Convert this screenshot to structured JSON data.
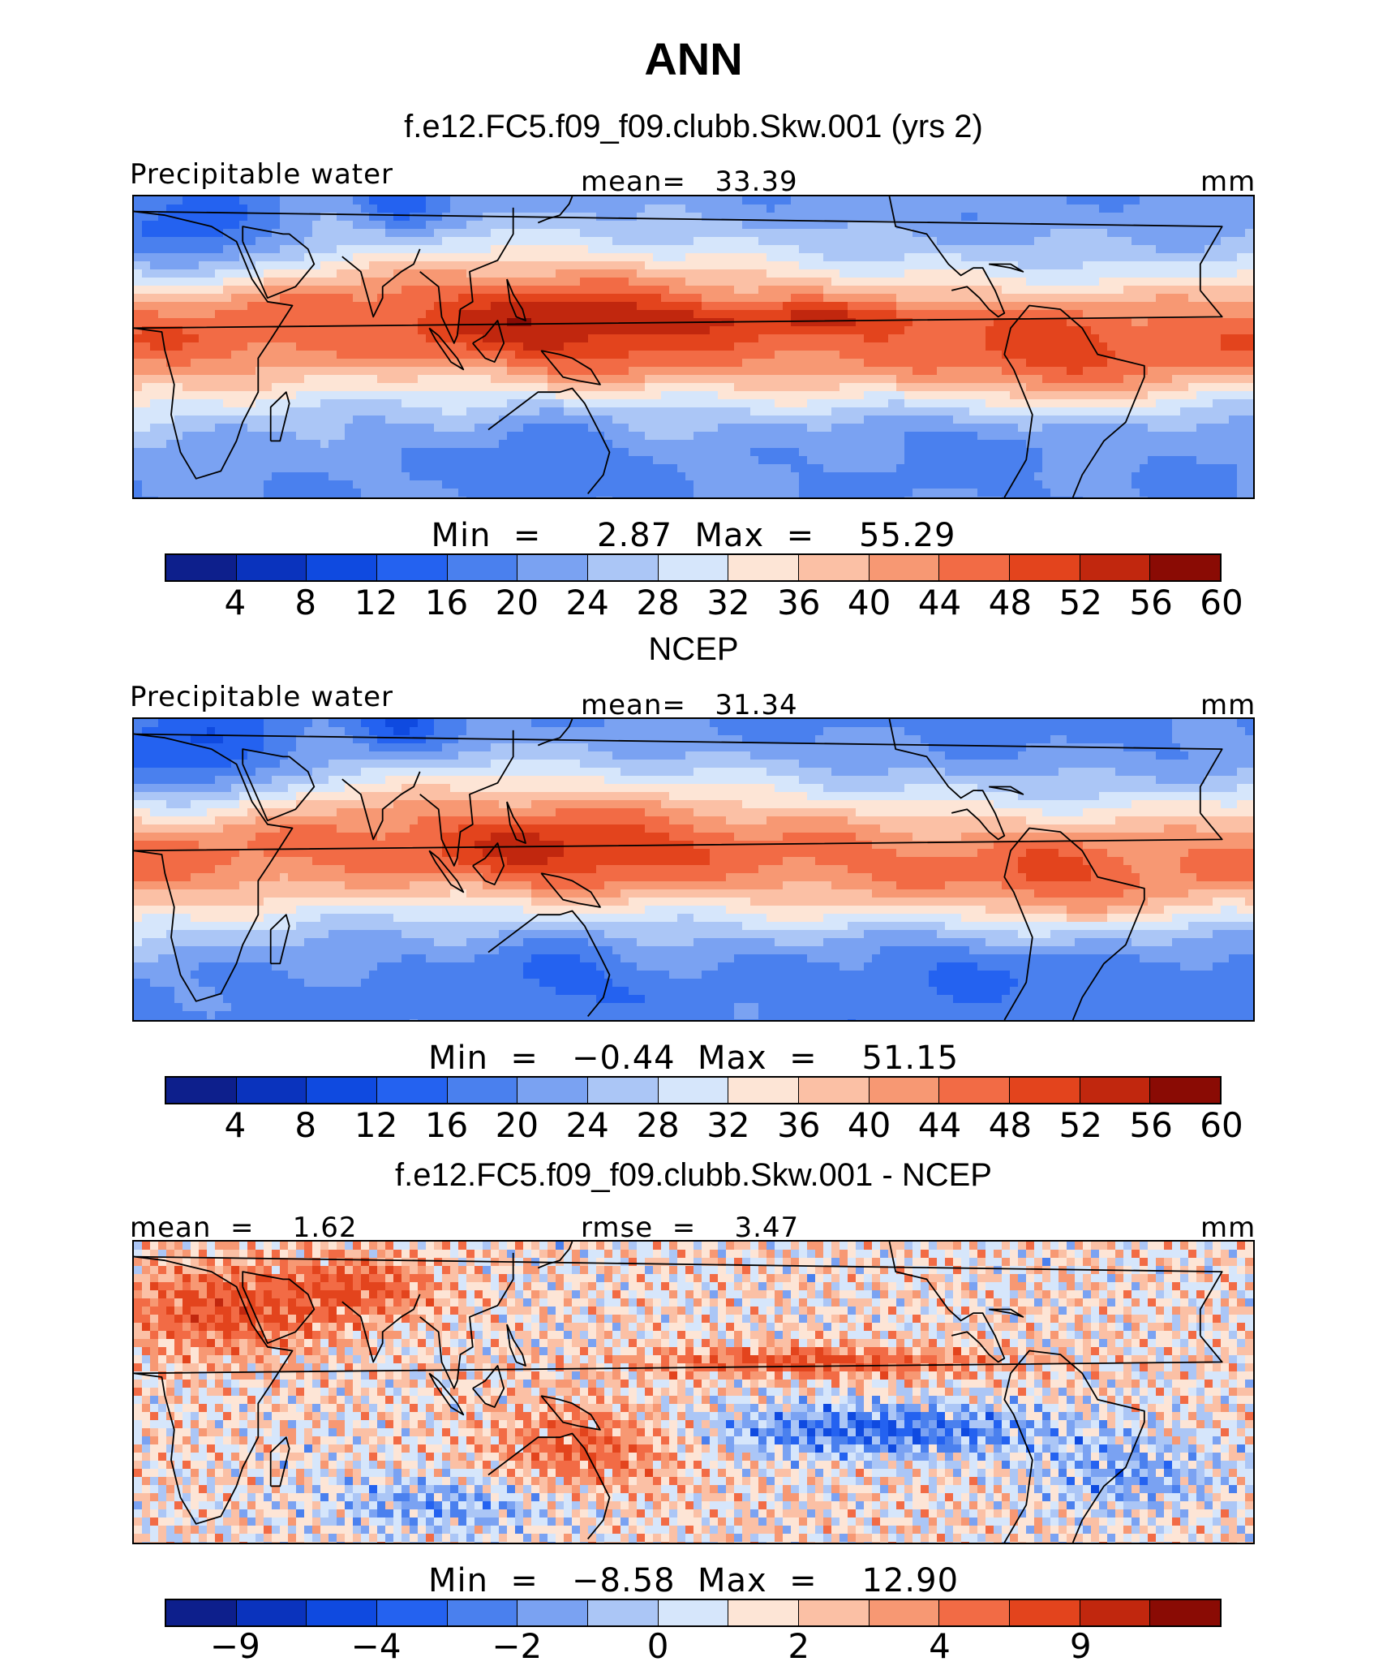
{
  "title": "ANN",
  "colors": [
    "#0d1f8c",
    "#0a33bd",
    "#0f4ae0",
    "#2462f0",
    "#4a80ee",
    "#7aa2f2",
    "#abc6f6",
    "#d6e6fb",
    "#fde5d6",
    "#fbc0a5",
    "#f79873",
    "#f26b45",
    "#e3441d",
    "#c1270e",
    "#8a0b04"
  ],
  "coast_color": "#000000",
  "chart_data": [
    {
      "type": "contour-map",
      "name": "model",
      "title": "f.e12.FC5.f09_f09.clubb.Skw.001 (yrs 2)",
      "variable": "Precipitable water",
      "stat_center": "mean=   33.39",
      "units": "mm",
      "mean": 33.39,
      "min": 2.87,
      "max": 55.29,
      "minmax_text": "Min  =     2.87  Max  =    55.29",
      "levels": [
        4,
        8,
        12,
        16,
        20,
        24,
        28,
        32,
        36,
        40,
        44,
        48,
        52,
        56,
        60
      ],
      "tick_labels": [
        "4",
        "8",
        "12",
        "16",
        "20",
        "24",
        "28",
        "32",
        "36",
        "40",
        "44",
        "48",
        "52",
        "56",
        "60"
      ],
      "lon_range": [
        0,
        360
      ],
      "lat_range": [
        -40,
        40
      ]
    },
    {
      "type": "contour-map",
      "name": "ncep",
      "title": "NCEP",
      "variable": "Precipitable water",
      "stat_center": "mean=   31.34",
      "units": "mm",
      "mean": 31.34,
      "min": -0.44,
      "max": 51.15,
      "minmax_text": "Min  =   −0.44  Max  =    51.15",
      "levels": [
        4,
        8,
        12,
        16,
        20,
        24,
        28,
        32,
        36,
        40,
        44,
        48,
        52,
        56,
        60
      ],
      "tick_labels": [
        "4",
        "8",
        "12",
        "16",
        "20",
        "24",
        "28",
        "32",
        "36",
        "40",
        "44",
        "48",
        "52",
        "56",
        "60"
      ],
      "lon_range": [
        0,
        360
      ],
      "lat_range": [
        -40,
        40
      ]
    },
    {
      "type": "contour-map",
      "name": "difference",
      "title": "f.e12.FC5.f09_f09.clubb.Skw.001 - NCEP",
      "stat_left": "mean  =    1.62",
      "stat_center": "rmse  =    3.47",
      "units": "mm",
      "mean": 1.62,
      "rmse": 3.47,
      "min": -8.58,
      "max": 12.9,
      "minmax_text": "Min  =   −8.58  Max  =    12.90",
      "levels": [
        -9,
        -6,
        -4,
        -3,
        -2,
        -1,
        0,
        1,
        2,
        3,
        4,
        6,
        9,
        12
      ],
      "tick_labels": [
        "−9",
        "−4",
        "−2",
        "0",
        "2",
        "4",
        "9"
      ],
      "lon_range": [
        0,
        360
      ],
      "lat_range": [
        -40,
        40
      ]
    }
  ]
}
